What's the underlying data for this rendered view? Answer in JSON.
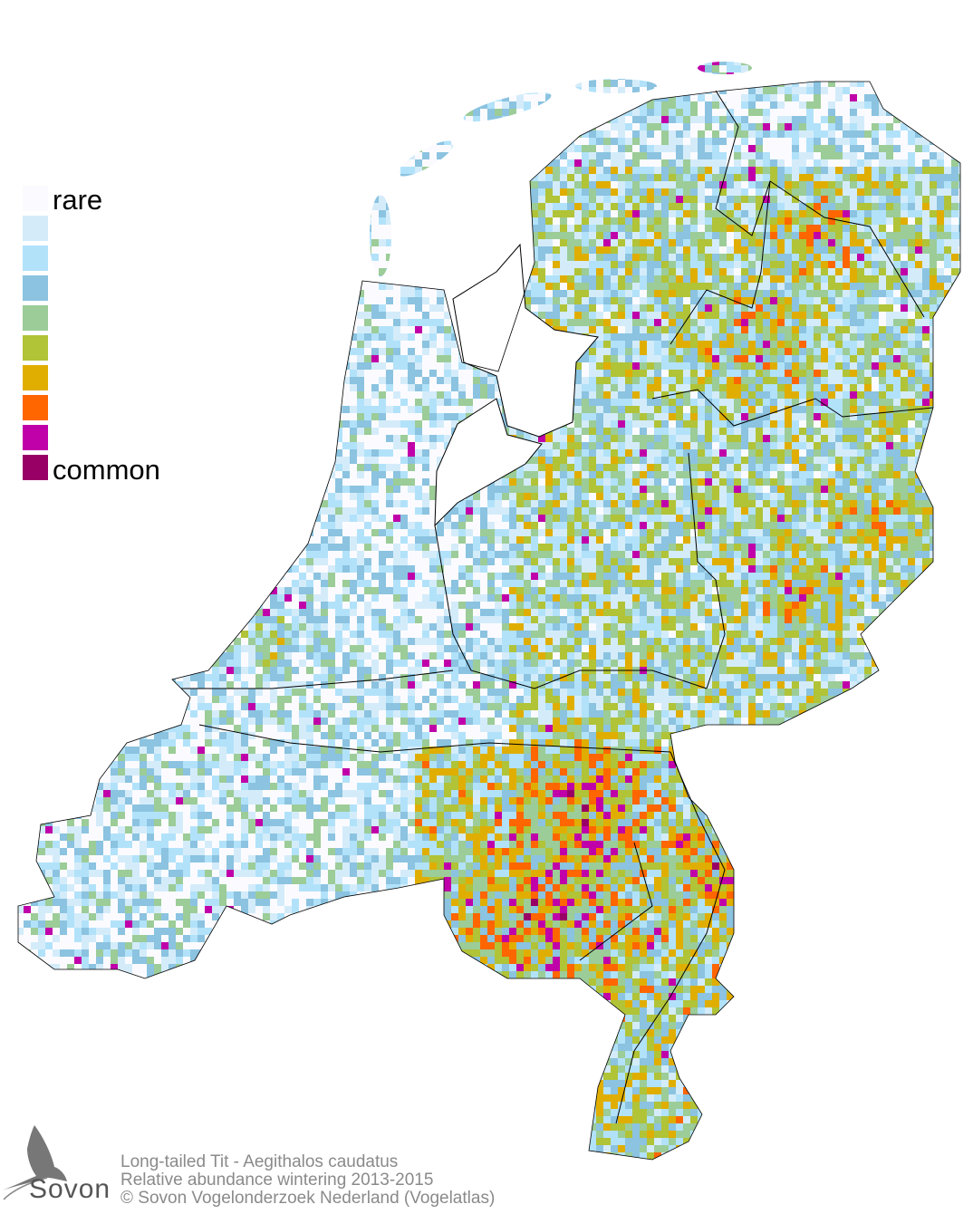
{
  "legend": {
    "labels": {
      "low": "rare",
      "high": "common"
    },
    "colors": [
      "#fbfbff",
      "#d4ecfa",
      "#b2e2fa",
      "#8bc3e0",
      "#9ccc98",
      "#b1c337",
      "#e0ae00",
      "#ff6600",
      "#c000a8",
      "#990066"
    ]
  },
  "caption": {
    "line1": "Long-tailed Tit - Aegithalos caudatus",
    "line2": "Relative abundance wintering 2013-2015",
    "line3": "© Sovon Vogelonderzoek Nederland (Vogelatlas)"
  },
  "logo": {
    "text": "Sovon"
  }
}
